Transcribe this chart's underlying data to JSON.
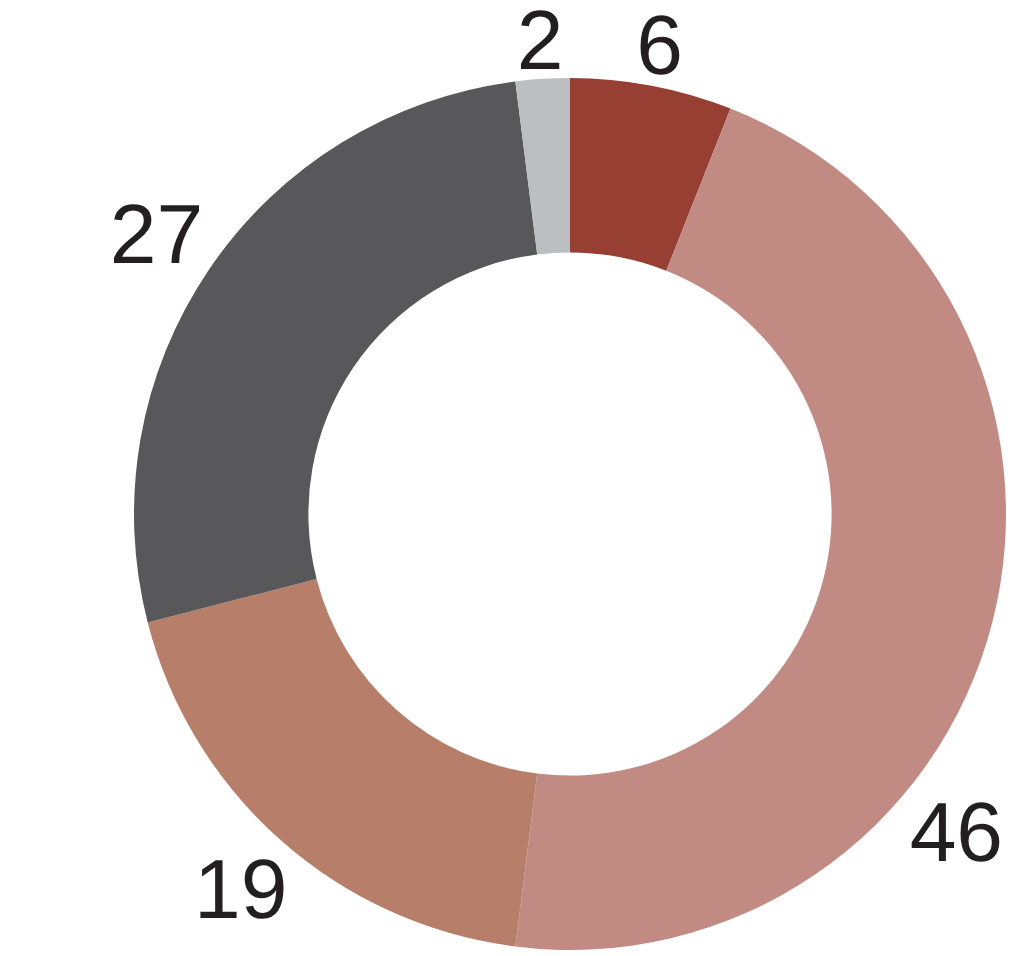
{
  "chart_data": {
    "type": "donut",
    "categories": [
      null,
      null,
      null,
      null,
      null
    ],
    "values": [
      6,
      46,
      19,
      27,
      2
    ],
    "colors": [
      "#963f32",
      "#c18b83",
      "#b77f69",
      "#58585a",
      "#bcbec2"
    ],
    "data_labels": true
  }
}
